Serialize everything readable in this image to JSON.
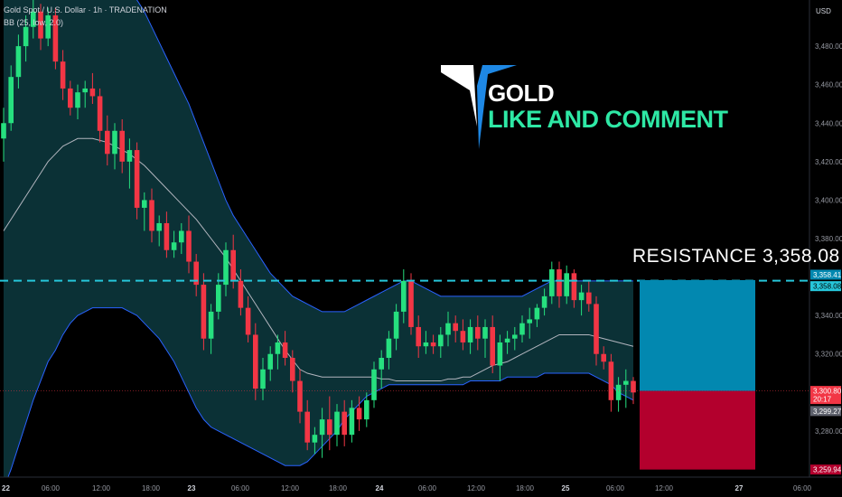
{
  "header": {
    "symbol_line": "Gold Spot / U.S. Dollar · 1h · TRADENATION",
    "indicator_line": "BB (25, low, 2.0)"
  },
  "price_axis": {
    "currency": "USD",
    "ticks": [
      "3,480.00",
      "3,460.00",
      "3,440.00",
      "3,420.00",
      "3,400.00",
      "3,380.00",
      "3,340.00",
      "3,320.00",
      "3,280.00"
    ],
    "tick_values": [
      3480,
      3460,
      3440,
      3420,
      3400,
      3380,
      3340,
      3320,
      3280
    ],
    "labels": {
      "top_band": "3,358.41",
      "resistance": "3,358.08",
      "current": "3,300.80",
      "countdown": "20:17",
      "bb_lower": "3,299.27",
      "target": "3,259.94"
    }
  },
  "time_axis": {
    "labels": [
      "22",
      "06:00",
      "12:00",
      "18:00",
      "23",
      "06:00",
      "12:00",
      "18:00",
      "24",
      "06:00",
      "12:00",
      "18:00",
      "25",
      "06:00",
      "12:00",
      "27",
      "06:00"
    ]
  },
  "overlay": {
    "title_line1": "GOLD",
    "title_line2": "LIKE AND COMMENT",
    "resistance_text": "RESISTANCE  3,358.08"
  },
  "colors": {
    "background": "#000000",
    "up": "#089981",
    "up_bright": "#26e07f",
    "down": "#f23645",
    "band_fill": "#0d3a40",
    "band_line": "#2962ff",
    "resistance_line": "#26c6da",
    "target_box": "#0288b0",
    "stop_box": "#b3002d",
    "title_accent": "#2ee8a5"
  },
  "chart_data": {
    "type": "candlestick",
    "title": "Gold Spot / U.S. Dollar · 1h · TRADENATION",
    "ylim": [
      3256,
      3504
    ],
    "resistance": 3358.08,
    "current_price": 3300.8,
    "position": {
      "entry": 3300.8,
      "take_profit": 3358.41,
      "stop": 3259.94
    },
    "candles": [
      {
        "o": 3432,
        "h": 3448,
        "l": 3420,
        "c": 3440
      },
      {
        "o": 3440,
        "h": 3470,
        "l": 3436,
        "c": 3464
      },
      {
        "o": 3464,
        "h": 3486,
        "l": 3458,
        "c": 3480
      },
      {
        "o": 3480,
        "h": 3496,
        "l": 3472,
        "c": 3490
      },
      {
        "o": 3490,
        "h": 3504,
        "l": 3484,
        "c": 3498
      },
      {
        "o": 3498,
        "h": 3502,
        "l": 3478,
        "c": 3484
      },
      {
        "o": 3484,
        "h": 3500,
        "l": 3480,
        "c": 3496
      },
      {
        "o": 3496,
        "h": 3500,
        "l": 3468,
        "c": 3472
      },
      {
        "o": 3472,
        "h": 3478,
        "l": 3452,
        "c": 3458
      },
      {
        "o": 3458,
        "h": 3462,
        "l": 3444,
        "c": 3448
      },
      {
        "o": 3448,
        "h": 3460,
        "l": 3442,
        "c": 3456
      },
      {
        "o": 3456,
        "h": 3462,
        "l": 3448,
        "c": 3458
      },
      {
        "o": 3458,
        "h": 3466,
        "l": 3450,
        "c": 3454
      },
      {
        "o": 3454,
        "h": 3458,
        "l": 3430,
        "c": 3436
      },
      {
        "o": 3436,
        "h": 3444,
        "l": 3418,
        "c": 3424
      },
      {
        "o": 3424,
        "h": 3440,
        "l": 3416,
        "c": 3436
      },
      {
        "o": 3436,
        "h": 3442,
        "l": 3414,
        "c": 3420
      },
      {
        "o": 3420,
        "h": 3432,
        "l": 3406,
        "c": 3426
      },
      {
        "o": 3426,
        "h": 3430,
        "l": 3390,
        "c": 3396
      },
      {
        "o": 3396,
        "h": 3404,
        "l": 3384,
        "c": 3400
      },
      {
        "o": 3400,
        "h": 3406,
        "l": 3378,
        "c": 3384
      },
      {
        "o": 3384,
        "h": 3392,
        "l": 3376,
        "c": 3388
      },
      {
        "o": 3388,
        "h": 3394,
        "l": 3370,
        "c": 3374
      },
      {
        "o": 3374,
        "h": 3384,
        "l": 3370,
        "c": 3378
      },
      {
        "o": 3378,
        "h": 3388,
        "l": 3372,
        "c": 3384
      },
      {
        "o": 3384,
        "h": 3392,
        "l": 3362,
        "c": 3368
      },
      {
        "o": 3368,
        "h": 3372,
        "l": 3350,
        "c": 3356
      },
      {
        "o": 3356,
        "h": 3362,
        "l": 3322,
        "c": 3328
      },
      {
        "o": 3328,
        "h": 3346,
        "l": 3320,
        "c": 3342
      },
      {
        "o": 3342,
        "h": 3362,
        "l": 3338,
        "c": 3356
      },
      {
        "o": 3356,
        "h": 3378,
        "l": 3350,
        "c": 3374
      },
      {
        "o": 3374,
        "h": 3382,
        "l": 3354,
        "c": 3358
      },
      {
        "o": 3358,
        "h": 3364,
        "l": 3340,
        "c": 3344
      },
      {
        "o": 3344,
        "h": 3350,
        "l": 3326,
        "c": 3330
      },
      {
        "o": 3330,
        "h": 3336,
        "l": 3296,
        "c": 3302
      },
      {
        "o": 3302,
        "h": 3318,
        "l": 3296,
        "c": 3312
      },
      {
        "o": 3312,
        "h": 3324,
        "l": 3306,
        "c": 3320
      },
      {
        "o": 3320,
        "h": 3330,
        "l": 3312,
        "c": 3326
      },
      {
        "o": 3326,
        "h": 3332,
        "l": 3314,
        "c": 3318
      },
      {
        "o": 3318,
        "h": 3322,
        "l": 3300,
        "c": 3306
      },
      {
        "o": 3306,
        "h": 3312,
        "l": 3284,
        "c": 3290
      },
      {
        "o": 3290,
        "h": 3296,
        "l": 3270,
        "c": 3274
      },
      {
        "o": 3274,
        "h": 3282,
        "l": 3268,
        "c": 3278
      },
      {
        "o": 3278,
        "h": 3292,
        "l": 3266,
        "c": 3286
      },
      {
        "o": 3286,
        "h": 3298,
        "l": 3270,
        "c": 3278
      },
      {
        "o": 3278,
        "h": 3294,
        "l": 3272,
        "c": 3290
      },
      {
        "o": 3290,
        "h": 3296,
        "l": 3272,
        "c": 3278
      },
      {
        "o": 3278,
        "h": 3296,
        "l": 3274,
        "c": 3292
      },
      {
        "o": 3292,
        "h": 3298,
        "l": 3280,
        "c": 3286
      },
      {
        "o": 3286,
        "h": 3300,
        "l": 3282,
        "c": 3296
      },
      {
        "o": 3296,
        "h": 3316,
        "l": 3292,
        "c": 3312
      },
      {
        "o": 3312,
        "h": 3322,
        "l": 3302,
        "c": 3318
      },
      {
        "o": 3318,
        "h": 3332,
        "l": 3312,
        "c": 3328
      },
      {
        "o": 3328,
        "h": 3346,
        "l": 3322,
        "c": 3342
      },
      {
        "o": 3342,
        "h": 3364,
        "l": 3336,
        "c": 3358
      },
      {
        "o": 3358,
        "h": 3362,
        "l": 3330,
        "c": 3334
      },
      {
        "o": 3334,
        "h": 3340,
        "l": 3318,
        "c": 3324
      },
      {
        "o": 3324,
        "h": 3332,
        "l": 3320,
        "c": 3326
      },
      {
        "o": 3326,
        "h": 3330,
        "l": 3320,
        "c": 3324
      },
      {
        "o": 3324,
        "h": 3334,
        "l": 3318,
        "c": 3330
      },
      {
        "o": 3330,
        "h": 3342,
        "l": 3324,
        "c": 3336
      },
      {
        "o": 3336,
        "h": 3340,
        "l": 3326,
        "c": 3332
      },
      {
        "o": 3332,
        "h": 3338,
        "l": 3322,
        "c": 3326
      },
      {
        "o": 3326,
        "h": 3338,
        "l": 3320,
        "c": 3334
      },
      {
        "o": 3334,
        "h": 3340,
        "l": 3322,
        "c": 3328
      },
      {
        "o": 3328,
        "h": 3338,
        "l": 3318,
        "c": 3334
      },
      {
        "o": 3334,
        "h": 3340,
        "l": 3310,
        "c": 3314
      },
      {
        "o": 3314,
        "h": 3330,
        "l": 3306,
        "c": 3326
      },
      {
        "o": 3326,
        "h": 3332,
        "l": 3320,
        "c": 3328
      },
      {
        "o": 3328,
        "h": 3334,
        "l": 3322,
        "c": 3330
      },
      {
        "o": 3330,
        "h": 3340,
        "l": 3326,
        "c": 3336
      },
      {
        "o": 3336,
        "h": 3344,
        "l": 3328,
        "c": 3338
      },
      {
        "o": 3338,
        "h": 3346,
        "l": 3334,
        "c": 3344
      },
      {
        "o": 3344,
        "h": 3354,
        "l": 3340,
        "c": 3350
      },
      {
        "o": 3350,
        "h": 3368,
        "l": 3346,
        "c": 3364
      },
      {
        "o": 3364,
        "h": 3368,
        "l": 3344,
        "c": 3350
      },
      {
        "o": 3350,
        "h": 3366,
        "l": 3346,
        "c": 3362
      },
      {
        "o": 3362,
        "h": 3364,
        "l": 3344,
        "c": 3348
      },
      {
        "o": 3348,
        "h": 3356,
        "l": 3340,
        "c": 3352
      },
      {
        "o": 3352,
        "h": 3358,
        "l": 3342,
        "c": 3346
      },
      {
        "o": 3346,
        "h": 3350,
        "l": 3314,
        "c": 3320
      },
      {
        "o": 3320,
        "h": 3324,
        "l": 3312,
        "c": 3316
      },
      {
        "o": 3316,
        "h": 3320,
        "l": 3290,
        "c": 3296
      },
      {
        "o": 3296,
        "h": 3308,
        "l": 3290,
        "c": 3304
      },
      {
        "o": 3304,
        "h": 3312,
        "l": 3292,
        "c": 3306
      },
      {
        "o": 3306,
        "h": 3308,
        "l": 3294,
        "c": 3300
      }
    ],
    "bb_upper": [
      3520,
      3522,
      3524,
      3526,
      3528,
      3530,
      3532,
      3534,
      3534,
      3534,
      3532,
      3530,
      3528,
      3526,
      3522,
      3518,
      3514,
      3510,
      3504,
      3498,
      3490,
      3482,
      3474,
      3466,
      3458,
      3450,
      3440,
      3430,
      3420,
      3410,
      3400,
      3392,
      3386,
      3380,
      3374,
      3368,
      3362,
      3358,
      3354,
      3350,
      3348,
      3346,
      3344,
      3342,
      3342,
      3342,
      3342,
      3344,
      3346,
      3348,
      3350,
      3352,
      3354,
      3356,
      3358,
      3358,
      3356,
      3354,
      3352,
      3350,
      3350,
      3350,
      3350,
      3350,
      3350,
      3350,
      3350,
      3350,
      3350,
      3350,
      3350,
      3352,
      3354,
      3356,
      3358,
      3358,
      3358,
      3358,
      3358,
      3358,
      3358,
      3358,
      3358,
      3358,
      3358,
      3358
    ],
    "bb_middle": [
      3384,
      3390,
      3396,
      3402,
      3408,
      3414,
      3420,
      3424,
      3428,
      3430,
      3432,
      3432,
      3432,
      3431,
      3430,
      3428,
      3426,
      3424,
      3421,
      3418,
      3414,
      3410,
      3406,
      3402,
      3398,
      3394,
      3390,
      3385,
      3380,
      3375,
      3370,
      3364,
      3358,
      3352,
      3346,
      3340,
      3334,
      3328,
      3322,
      3317,
      3312,
      3310,
      3309,
      3308,
      3308,
      3308,
      3308,
      3308,
      3308,
      3308,
      3308,
      3307,
      3307,
      3306,
      3306,
      3306,
      3306,
      3306,
      3306,
      3306,
      3307,
      3307,
      3308,
      3308,
      3310,
      3312,
      3314,
      3315,
      3316,
      3318,
      3320,
      3322,
      3324,
      3326,
      3328,
      3330,
      3330,
      3330,
      3330,
      3330,
      3329,
      3328,
      3327,
      3326,
      3325,
      3324
    ],
    "bb_lower": [
      3250,
      3260,
      3272,
      3284,
      3296,
      3306,
      3316,
      3322,
      3330,
      3336,
      3340,
      3342,
      3344,
      3344,
      3344,
      3344,
      3344,
      3342,
      3340,
      3336,
      3332,
      3328,
      3322,
      3316,
      3308,
      3300,
      3292,
      3286,
      3282,
      3280,
      3278,
      3276,
      3274,
      3272,
      3270,
      3268,
      3266,
      3264,
      3262,
      3262,
      3262,
      3264,
      3268,
      3272,
      3276,
      3280,
      3286,
      3290,
      3294,
      3298,
      3300,
      3302,
      3304,
      3304,
      3304,
      3304,
      3304,
      3304,
      3304,
      3304,
      3304,
      3304,
      3304,
      3306,
      3306,
      3306,
      3306,
      3306,
      3308,
      3308,
      3308,
      3308,
      3308,
      3310,
      3310,
      3310,
      3310,
      3310,
      3310,
      3310,
      3308,
      3306,
      3304,
      3300,
      3298,
      3296
    ]
  }
}
